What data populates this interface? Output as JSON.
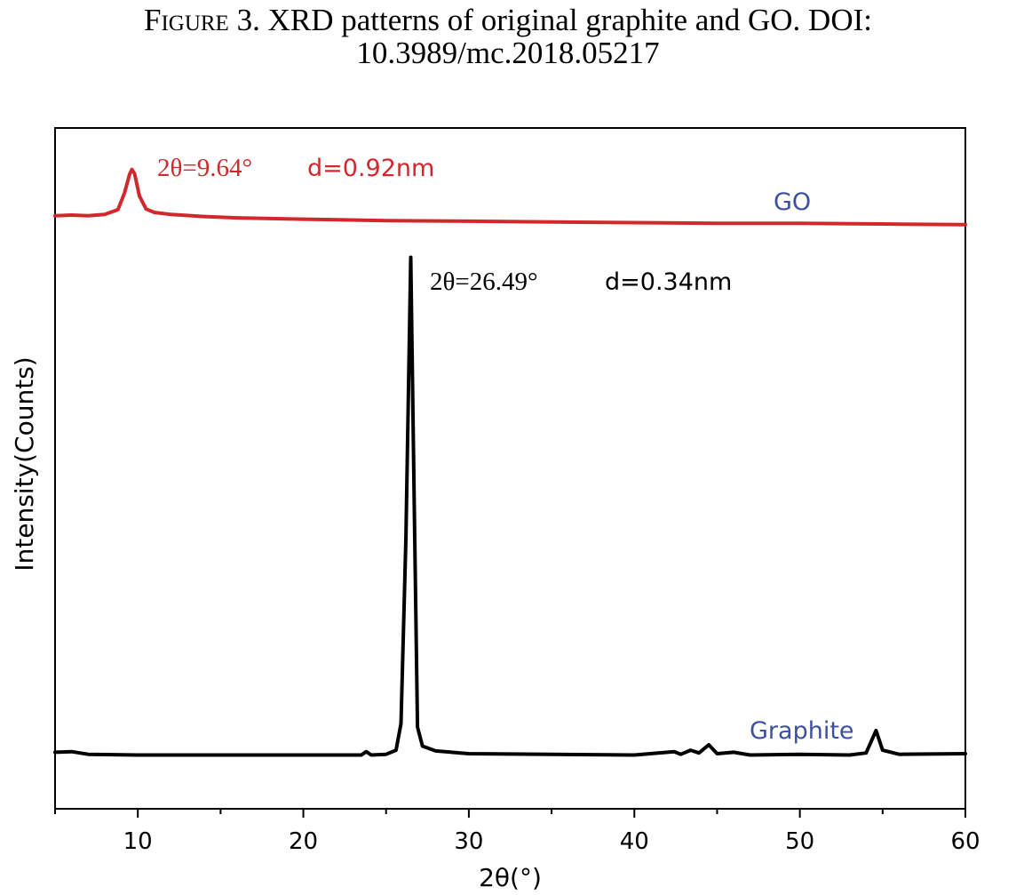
{
  "caption": {
    "figure_label": "Figure 3.",
    "line1": " XRD patterns of original graphite and GO. DOI:",
    "line2": "10.3989/mc.2018.05217"
  },
  "colors": {
    "go": "#d2282d",
    "graphite": "#000000",
    "label_blue": "#3c4fa0",
    "axis": "#000000"
  },
  "chart_data": {
    "type": "line",
    "xlabel": "2θ(°)",
    "ylabel": "Intensity(Counts)",
    "xlim": [
      5,
      60
    ],
    "ylim": [
      0,
      100
    ],
    "x_ticks": [
      10,
      20,
      30,
      40,
      50,
      60
    ],
    "y_ticks_shown": false,
    "grid": false,
    "series": [
      {
        "name": "GO",
        "color": "#d2282d",
        "points": [
          [
            5,
            87.1
          ],
          [
            6,
            87.2
          ],
          [
            7,
            87.1
          ],
          [
            8,
            87.3
          ],
          [
            8.8,
            88.0
          ],
          [
            9.2,
            90.5
          ],
          [
            9.5,
            93.2
          ],
          [
            9.64,
            93.9
          ],
          [
            9.8,
            93.3
          ],
          [
            10.1,
            90.0
          ],
          [
            10.5,
            88.1
          ],
          [
            11,
            87.6
          ],
          [
            12,
            87.3
          ],
          [
            14,
            87.0
          ],
          [
            16,
            86.8
          ],
          [
            20,
            86.6
          ],
          [
            25,
            86.4
          ],
          [
            30,
            86.3
          ],
          [
            35,
            86.2
          ],
          [
            40,
            86.1
          ],
          [
            45,
            86.0
          ],
          [
            50,
            86.0
          ],
          [
            55,
            85.9
          ],
          [
            60,
            85.8
          ]
        ]
      },
      {
        "name": "Graphite",
        "color": "#000000",
        "points": [
          [
            5,
            8.3
          ],
          [
            6,
            8.4
          ],
          [
            7,
            8.0
          ],
          [
            10,
            7.9
          ],
          [
            15,
            7.9
          ],
          [
            20,
            7.9
          ],
          [
            23.5,
            7.9
          ],
          [
            23.8,
            8.4
          ],
          [
            24.1,
            7.9
          ],
          [
            25,
            8.0
          ],
          [
            25.6,
            8.6
          ],
          [
            25.9,
            12.5
          ],
          [
            26.2,
            40
          ],
          [
            26.49,
            81.0
          ],
          [
            26.7,
            45
          ],
          [
            26.9,
            12
          ],
          [
            27.2,
            9.2
          ],
          [
            28,
            8.5
          ],
          [
            30,
            8.1
          ],
          [
            35,
            8.0
          ],
          [
            40,
            7.9
          ],
          [
            42.4,
            8.4
          ],
          [
            42.8,
            8.0
          ],
          [
            43.4,
            8.6
          ],
          [
            43.9,
            8.2
          ],
          [
            44.5,
            9.4
          ],
          [
            45,
            8.1
          ],
          [
            46,
            8.3
          ],
          [
            47,
            7.9
          ],
          [
            50,
            8.0
          ],
          [
            53,
            7.9
          ],
          [
            54,
            8.2
          ],
          [
            54.6,
            11.5
          ],
          [
            55,
            8.6
          ],
          [
            56,
            8.0
          ],
          [
            60,
            8.1
          ]
        ]
      }
    ],
    "annotations": [
      {
        "text_2theta": "2θ=9.64°",
        "text_d": "d=0.92nm",
        "series": "GO"
      },
      {
        "text_2theta": "2θ=26.49°",
        "text_d": "d=0.34nm",
        "series": "Graphite"
      }
    ],
    "series_labels": [
      {
        "text": "GO"
      },
      {
        "text": "Graphite"
      }
    ]
  }
}
